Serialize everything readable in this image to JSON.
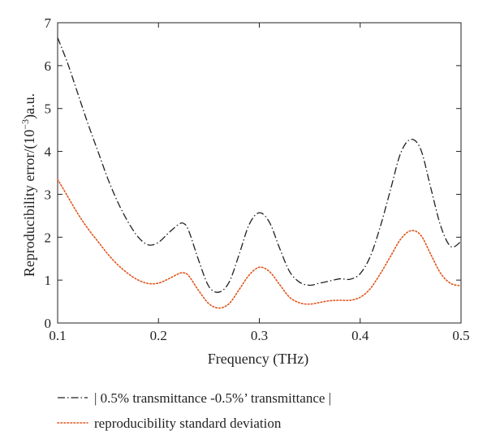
{
  "chart_data": {
    "type": "line",
    "title": "",
    "xlabel": "Frequency (THz)",
    "ylabel": "Reproducibility error/(10",
    "ylabel_sup": "−3",
    "ylabel_suffix": ")a.u.",
    "xlim": [
      0.1,
      0.5
    ],
    "ylim": [
      0,
      7
    ],
    "xticks": [
      0.1,
      0.2,
      0.3,
      0.4,
      0.5
    ],
    "xtick_labels": [
      "0.1",
      "0.2",
      "0.3",
      "0.4",
      "0.5"
    ],
    "yticks": [
      0,
      1,
      2,
      3,
      4,
      5,
      6,
      7
    ],
    "ytick_labels": [
      "0",
      "1",
      "2",
      "3",
      "4",
      "5",
      "6",
      "7"
    ],
    "grid": false,
    "legend_position": "below",
    "series": [
      {
        "name": "| 0.5% transmittance -0.5%’ transmittance |",
        "color": "#231f20",
        "style": "dash-dot",
        "x": [
          0.1,
          0.11,
          0.12,
          0.13,
          0.14,
          0.15,
          0.16,
          0.17,
          0.18,
          0.19,
          0.2,
          0.21,
          0.22,
          0.225,
          0.23,
          0.24,
          0.25,
          0.26,
          0.27,
          0.28,
          0.29,
          0.3,
          0.31,
          0.32,
          0.33,
          0.34,
          0.35,
          0.36,
          0.37,
          0.38,
          0.39,
          0.4,
          0.41,
          0.42,
          0.43,
          0.44,
          0.45,
          0.46,
          0.47,
          0.48,
          0.49,
          0.5
        ],
        "y": [
          6.65,
          6.05,
          5.35,
          4.65,
          4.0,
          3.35,
          2.8,
          2.35,
          2.0,
          1.82,
          1.88,
          2.1,
          2.3,
          2.32,
          2.15,
          1.45,
          0.85,
          0.72,
          0.95,
          1.6,
          2.3,
          2.57,
          2.35,
          1.75,
          1.2,
          0.95,
          0.88,
          0.93,
          0.98,
          1.03,
          1.02,
          1.15,
          1.55,
          2.25,
          3.1,
          3.95,
          4.28,
          4.05,
          3.15,
          2.25,
          1.78,
          1.9
        ]
      },
      {
        "name": "reproducibility standard deviation",
        "color": "#e0551b",
        "style": "dotted",
        "x": [
          0.1,
          0.11,
          0.12,
          0.13,
          0.14,
          0.15,
          0.16,
          0.17,
          0.18,
          0.19,
          0.2,
          0.21,
          0.22,
          0.225,
          0.23,
          0.24,
          0.25,
          0.26,
          0.27,
          0.28,
          0.29,
          0.3,
          0.31,
          0.32,
          0.33,
          0.34,
          0.35,
          0.36,
          0.37,
          0.38,
          0.39,
          0.4,
          0.41,
          0.42,
          0.43,
          0.44,
          0.45,
          0.46,
          0.47,
          0.48,
          0.49,
          0.5
        ],
        "y": [
          3.35,
          2.95,
          2.55,
          2.2,
          1.9,
          1.6,
          1.35,
          1.15,
          1.0,
          0.92,
          0.93,
          1.03,
          1.15,
          1.17,
          1.1,
          0.75,
          0.45,
          0.35,
          0.45,
          0.78,
          1.12,
          1.3,
          1.2,
          0.9,
          0.6,
          0.47,
          0.44,
          0.48,
          0.52,
          0.53,
          0.53,
          0.6,
          0.8,
          1.15,
          1.55,
          1.95,
          2.15,
          2.05,
          1.6,
          1.15,
          0.92,
          0.87
        ]
      }
    ]
  }
}
